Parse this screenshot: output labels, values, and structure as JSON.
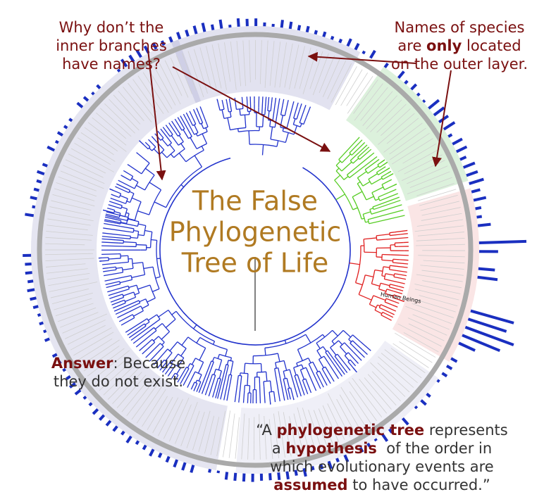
{
  "title": {
    "lines": [
      "The False",
      "Phylogenetic",
      "Tree of Life"
    ]
  },
  "question": {
    "lines": [
      "Why don’t the",
      "inner branches",
      "have names?"
    ]
  },
  "outer_note": {
    "lines": [
      [
        {
          "text": "Names of species"
        }
      ],
      [
        {
          "text": "are "
        },
        {
          "text": "only",
          "bold": true
        },
        {
          "text": " located"
        }
      ],
      [
        {
          "text": "on the outer layer."
        }
      ]
    ]
  },
  "answer": {
    "lines": [
      [
        {
          "text": "Answer",
          "bold": true
        },
        {
          "text": ": Because"
        }
      ],
      [
        {
          "text": "they do not exist."
        }
      ]
    ]
  },
  "quote": {
    "lines": [
      [
        {
          "text": "“A "
        },
        {
          "text": "phylogenetic tree",
          "bold": true
        },
        {
          "text": " represents"
        }
      ],
      [
        {
          "text": "a "
        },
        {
          "text": "hypothesis",
          "bold": true
        },
        {
          "text": "  of the order in"
        }
      ],
      [
        {
          "text": "which evolutionary events are"
        }
      ],
      [
        {
          "text": "assumed",
          "bold": true
        },
        {
          "text": " to have occurred.”"
        }
      ]
    ]
  },
  "leaf_label": "Human Beings"
}
